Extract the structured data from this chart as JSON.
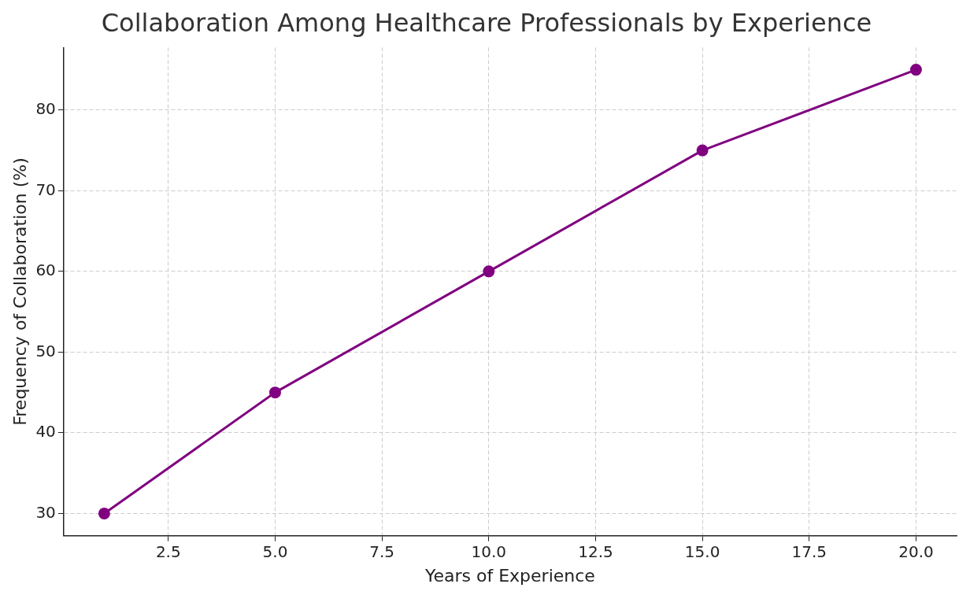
{
  "chart_data": {
    "type": "line",
    "title": "Collaboration Among Healthcare Professionals by Experience",
    "xlabel": "Years of Experience",
    "ylabel": "Frequency of Collaboration (%)",
    "x": [
      1,
      5,
      10,
      15,
      20
    ],
    "series": [
      {
        "color": "#800080",
        "values": [
          30,
          45,
          60,
          75,
          85
        ]
      }
    ],
    "xlim": [
      0.05,
      20.95
    ],
    "xticks": [
      {
        "value": 2.5,
        "label": "2.5"
      },
      {
        "value": 5,
        "label": "5.0"
      },
      {
        "value": 7.5,
        "label": "7.5"
      },
      {
        "value": 10,
        "label": "10.0"
      },
      {
        "value": 12.5,
        "label": "12.5"
      },
      {
        "value": 15,
        "label": "15.0"
      },
      {
        "value": 17.5,
        "label": "17.5"
      },
      {
        "value": 20,
        "label": "20.0"
      }
    ],
    "ylim": [
      27.25,
      87.75
    ],
    "yticks": [
      30,
      40,
      50,
      60,
      70,
      80
    ],
    "grid": true,
    "marker": "circle",
    "line_style": "solid"
  }
}
